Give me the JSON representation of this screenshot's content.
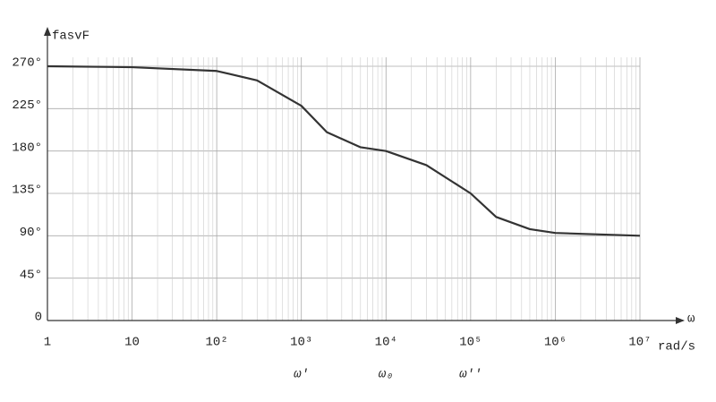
{
  "chart_data": {
    "type": "line",
    "y_label": "fasvF",
    "x_label": "ω",
    "x_unit": "rad/s",
    "xscale": "log",
    "grid": true,
    "xlim": [
      1,
      10000000
    ],
    "ylim": [
      0,
      270
    ],
    "xticks": [
      1,
      10,
      {
        "value": 100,
        "label": "10²"
      },
      {
        "value": 1000,
        "label": "10³"
      },
      {
        "value": 10000,
        "label": "10⁴"
      },
      {
        "value": 100000,
        "label": "10⁵"
      },
      {
        "value": 1000000,
        "label": "10⁶"
      },
      {
        "value": 10000000,
        "label": "10⁷"
      }
    ],
    "yticks": [
      0,
      {
        "value": 45,
        "label": "45°"
      },
      {
        "value": 90,
        "label": "90°"
      },
      {
        "value": 135,
        "label": "135°"
      },
      {
        "value": 180,
        "label": "180°"
      },
      {
        "value": 225,
        "label": "225°"
      },
      {
        "value": 270,
        "label": "270°"
      }
    ],
    "x": [
      1,
      10,
      100,
      300,
      1000,
      2000,
      5000,
      10000,
      30000,
      100000,
      200000,
      500000,
      1000000,
      10000000
    ],
    "series": [
      {
        "name": "fasvF",
        "color": "#333333",
        "values": [
          270,
          269,
          265,
          255,
          228,
          200,
          184,
          180,
          165,
          135,
          110,
          97,
          93,
          90
        ]
      }
    ],
    "annotations": [
      {
        "text": "ω'",
        "x": 1000
      },
      {
        "text": "ω₀",
        "x": 10000
      },
      {
        "text": "ω''",
        "x": 100000
      }
    ]
  }
}
